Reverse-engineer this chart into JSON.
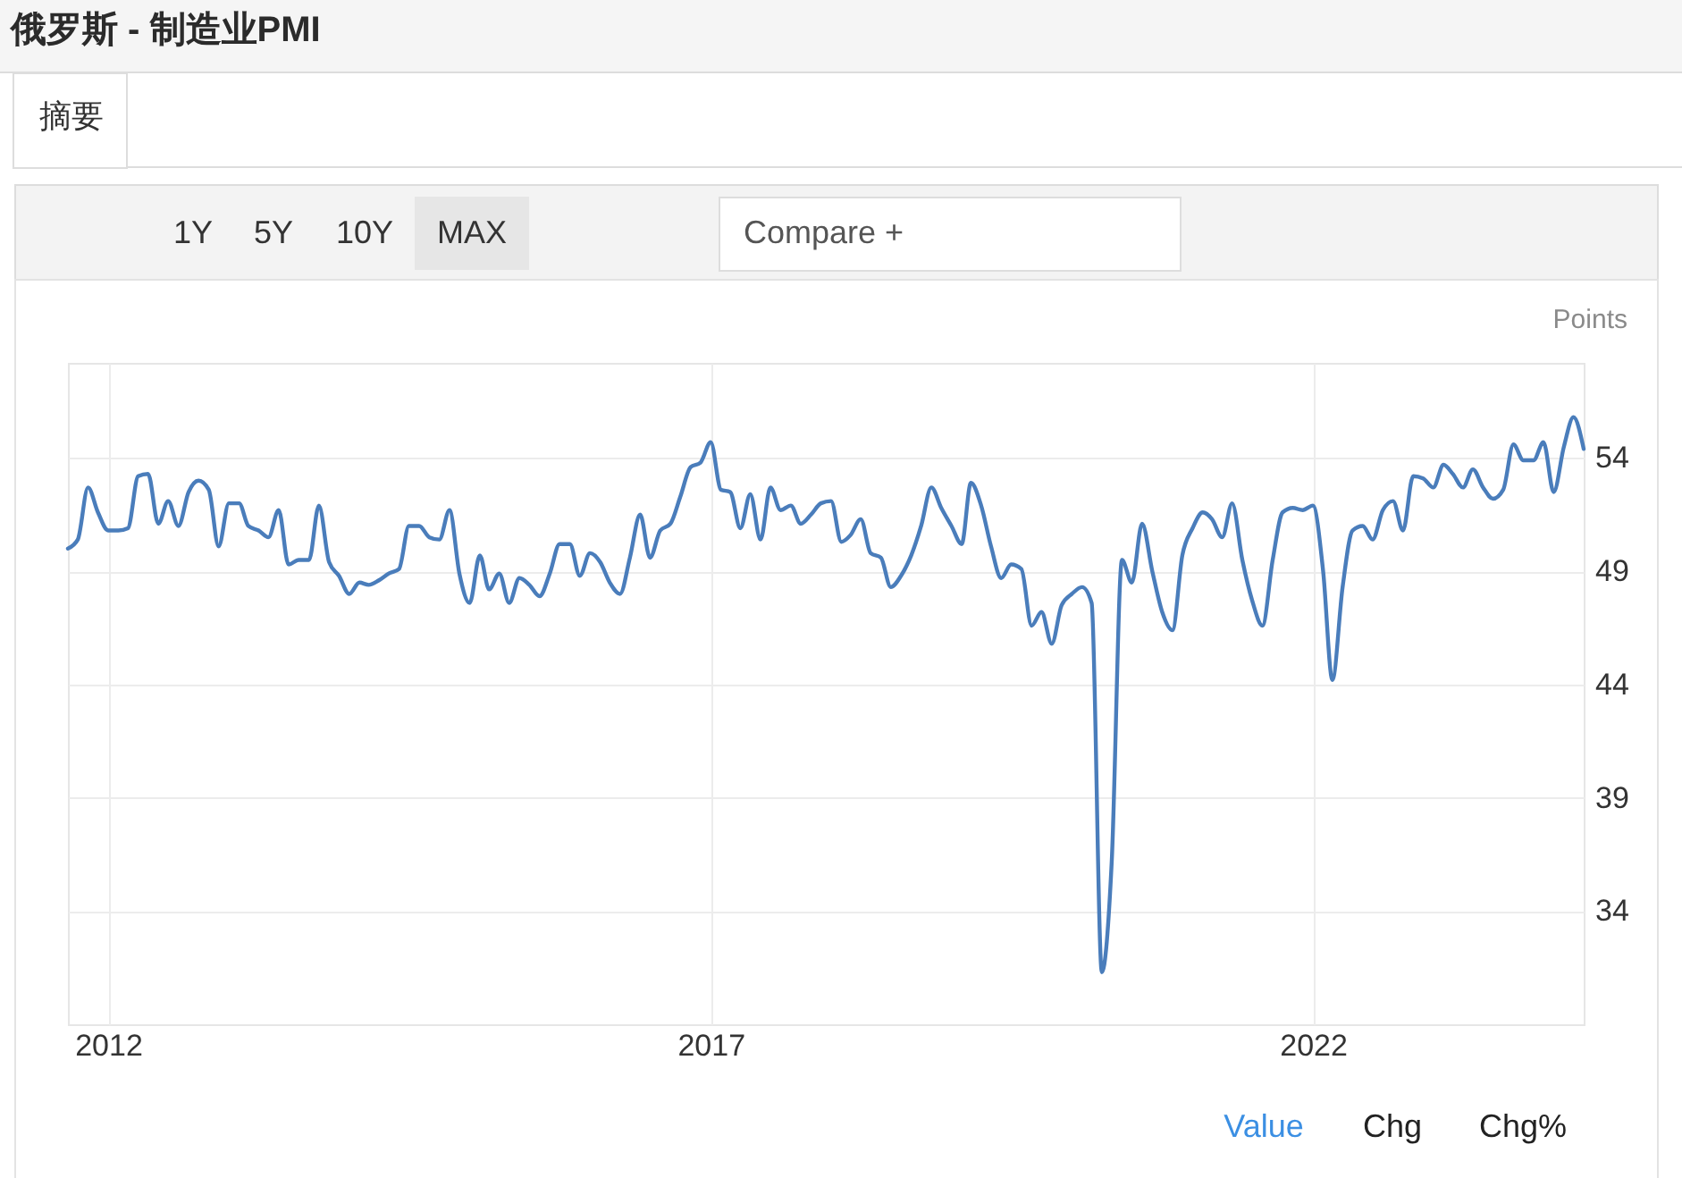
{
  "chart_data": {
    "type": "line",
    "title": "俄罗斯 - 制造业PMI",
    "ylabel": "Points",
    "x": [
      "2011-09",
      "2011-10",
      "2011-11",
      "2011-12",
      "2012-01",
      "2012-02",
      "2012-03",
      "2012-04",
      "2012-05",
      "2012-06",
      "2012-07",
      "2012-08",
      "2012-09",
      "2012-10",
      "2012-11",
      "2012-12",
      "2013-01",
      "2013-02",
      "2013-03",
      "2013-04",
      "2013-05",
      "2013-06",
      "2013-07",
      "2013-08",
      "2013-09",
      "2013-10",
      "2013-11",
      "2013-12",
      "2014-01",
      "2014-02",
      "2014-03",
      "2014-04",
      "2014-05",
      "2014-06",
      "2014-07",
      "2014-08",
      "2014-09",
      "2014-10",
      "2014-11",
      "2014-12",
      "2015-01",
      "2015-02",
      "2015-03",
      "2015-04",
      "2015-05",
      "2015-06",
      "2015-07",
      "2015-08",
      "2015-09",
      "2015-10",
      "2015-11",
      "2015-12",
      "2016-01",
      "2016-02",
      "2016-03",
      "2016-04",
      "2016-05",
      "2016-06",
      "2016-07",
      "2016-08",
      "2016-09",
      "2016-10",
      "2016-11",
      "2016-12",
      "2017-01",
      "2017-02",
      "2017-03",
      "2017-04",
      "2017-05",
      "2017-06",
      "2017-07",
      "2017-08",
      "2017-09",
      "2017-10",
      "2017-11",
      "2017-12",
      "2018-01",
      "2018-02",
      "2018-03",
      "2018-04",
      "2018-05",
      "2018-06",
      "2018-07",
      "2018-08",
      "2018-09",
      "2018-10",
      "2018-11",
      "2018-12",
      "2019-01",
      "2019-02",
      "2019-03",
      "2019-04",
      "2019-05",
      "2019-06",
      "2019-07",
      "2019-08",
      "2019-09",
      "2019-10",
      "2019-11",
      "2019-12",
      "2020-01",
      "2020-02",
      "2020-03",
      "2020-04",
      "2020-05",
      "2020-06",
      "2020-07",
      "2020-08",
      "2020-09",
      "2020-10",
      "2020-11",
      "2020-12",
      "2021-01",
      "2021-02",
      "2021-03",
      "2021-04",
      "2021-05",
      "2021-06",
      "2021-07",
      "2021-08",
      "2021-09",
      "2021-10",
      "2021-11",
      "2021-12",
      "2022-01",
      "2022-02",
      "2022-03",
      "2022-04",
      "2022-05",
      "2022-06",
      "2022-07",
      "2022-08",
      "2022-09",
      "2022-10",
      "2022-11",
      "2022-12",
      "2023-01",
      "2023-02",
      "2023-03",
      "2023-04",
      "2023-05",
      "2023-06",
      "2023-07",
      "2023-08",
      "2023-09",
      "2023-10",
      "2023-11",
      "2023-12",
      "2024-01",
      "2024-02",
      "2024-03",
      "2024-04"
    ],
    "series": [
      {
        "color": "#4a7dbb",
        "values": [
          50.0,
          50.4,
          52.7,
          51.6,
          50.8,
          50.8,
          50.9,
          53.2,
          53.3,
          51.1,
          52.1,
          51.0,
          52.5,
          53.0,
          52.6,
          50.1,
          52.0,
          52.0,
          51.0,
          50.8,
          50.5,
          51.7,
          49.3,
          49.5,
          49.5,
          51.9,
          49.4,
          48.8,
          48.0,
          48.5,
          48.4,
          48.6,
          48.9,
          49.1,
          51.0,
          51.0,
          50.5,
          50.4,
          51.7,
          48.9,
          47.6,
          49.7,
          48.2,
          48.9,
          47.6,
          48.7,
          48.4,
          47.9,
          48.9,
          50.2,
          50.2,
          48.8,
          49.8,
          49.4,
          48.5,
          48.0,
          49.6,
          51.5,
          49.6,
          50.8,
          51.1,
          52.3,
          53.6,
          53.8,
          54.7,
          52.6,
          52.5,
          50.9,
          52.4,
          50.4,
          52.7,
          51.7,
          51.9,
          51.1,
          51.5,
          52.0,
          52.1,
          50.3,
          50.6,
          51.3,
          49.8,
          49.6,
          48.3,
          48.8,
          49.7,
          51.0,
          52.7,
          51.8,
          51.0,
          50.2,
          52.9,
          51.9,
          50.1,
          48.7,
          49.3,
          49.1,
          46.6,
          47.2,
          45.8,
          47.5,
          48.0,
          48.3,
          47.6,
          31.3,
          36.2,
          49.5,
          48.5,
          51.1,
          49.0,
          47.2,
          46.4,
          49.7,
          50.9,
          51.6,
          51.3,
          50.5,
          52.0,
          49.5,
          47.7,
          46.6,
          49.5,
          51.6,
          51.8,
          51.7,
          51.9,
          49.0,
          44.2,
          48.3,
          50.8,
          51.0,
          50.4,
          51.7,
          52.1,
          50.8,
          53.2,
          53.1,
          52.7,
          53.7,
          53.3,
          52.7,
          53.5,
          52.7,
          52.2,
          52.6,
          54.6,
          53.9,
          53.9,
          54.7,
          52.5,
          54.5,
          55.8,
          54.4
        ]
      }
    ],
    "xlim": [
      "2011-09",
      "2024-04"
    ],
    "ylim": [
      29,
      58.2
    ],
    "xticks": [
      "2012",
      "2017",
      "2022"
    ],
    "yticks": [
      34,
      39,
      44,
      49,
      54
    ],
    "grid": true,
    "line_style": "solid",
    "annotations": [
      "摘要",
      "1Y",
      "5Y",
      "10Y",
      "MAX",
      "Compare +",
      "Value",
      "Chg",
      "Chg%"
    ]
  }
}
